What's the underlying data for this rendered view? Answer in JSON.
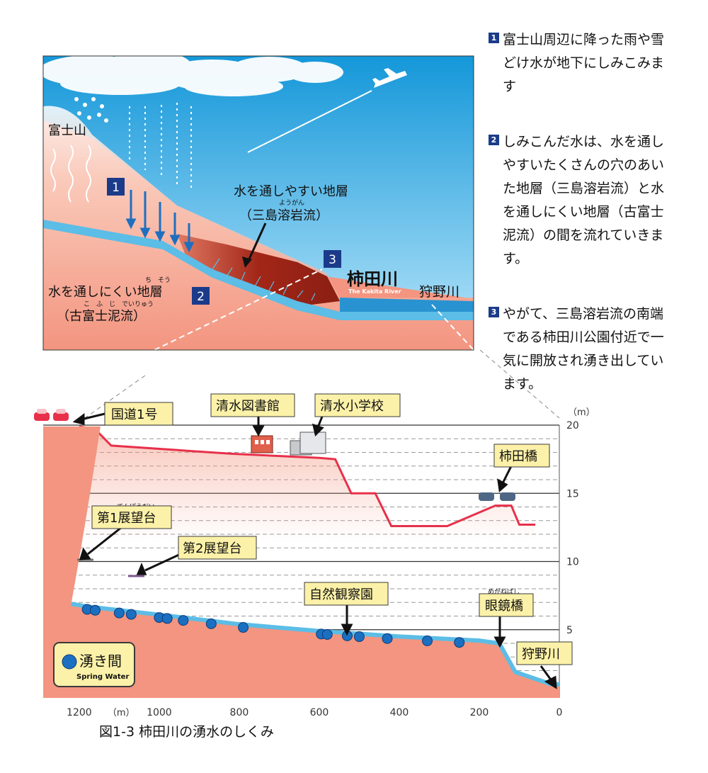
{
  "notes": [
    {
      "num": "1",
      "text": "富士山周辺に降った雨や雪どけ水が地下にしみこみます"
    },
    {
      "num": "2",
      "text": "しみこんだ水は、水を通しやすいたくさんの穴のあいた地層（三島溶岩流）と水を通しにくい地層（古富士泥流）の間を流れていきます。"
    },
    {
      "num": "3",
      "text": "やがて、三島溶岩流の南端である柿田川公園付近で一気に開放され湧き出しています。"
    }
  ],
  "top": {
    "fuji": "富士山",
    "perm_title": "水を通しやすい地層",
    "perm_ruby": "ようがん",
    "perm_name": "（三島溶岩流）",
    "imperm_ruby": "ち　そう",
    "imperm_title": "水を通しにくい地層",
    "imperm_name_ruby": "こ　ふ　じ　でいりゅう",
    "imperm_name": "（古富士泥流）",
    "kakita": "柿田川",
    "kakita_en": "The Kakita River",
    "kano": "狩野川",
    "m1": "1",
    "m2": "2",
    "m3": "3"
  },
  "bottom": {
    "route1": "国道1号",
    "library": "清水図書館",
    "school": "清水小学校",
    "bridge": "柿田橋",
    "obs1_ruby": "てんぼうだい",
    "obs1": "第1展望台",
    "obs2": "第2展望台",
    "park": "自然観察園",
    "megane_ruby": "めがねばし",
    "megane": "眼鏡橋",
    "kano": "狩野川",
    "legend_jp": "湧き間",
    "legend_en": "Spring Water",
    "unit_y": "（m）",
    "unit_x": "（m）"
  },
  "chart_data": {
    "type": "area",
    "ylim": [
      0,
      20
    ],
    "yticks": [
      "20",
      "15",
      "10",
      "5"
    ],
    "xticks": [
      "1200",
      "1000",
      "800",
      "600",
      "400",
      "200",
      "0"
    ],
    "xlim": [
      1200,
      0
    ],
    "surface_profile": [
      [
        1200,
        19.9
      ],
      [
        1160,
        19.7
      ],
      [
        1120,
        18.5
      ],
      [
        920,
        18.1
      ],
      [
        820,
        17.9
      ],
      [
        600,
        17.6
      ],
      [
        560,
        17.5
      ],
      [
        520,
        15.0
      ],
      [
        460,
        15.0
      ],
      [
        420,
        12.6
      ],
      [
        340,
        12.6
      ],
      [
        280,
        12.6
      ],
      [
        200,
        13.6
      ],
      [
        160,
        14.1
      ],
      [
        120,
        14.1
      ],
      [
        100,
        12.7
      ],
      [
        60,
        12.7
      ]
    ],
    "groundwater_profile": [
      [
        1220,
        6.9
      ],
      [
        1180,
        6.7
      ],
      [
        1000,
        6.1
      ],
      [
        800,
        5.4
      ],
      [
        600,
        4.9
      ],
      [
        400,
        4.5
      ],
      [
        200,
        4.2
      ],
      [
        150,
        4.0
      ],
      [
        110,
        1.9
      ],
      [
        20,
        1.0
      ]
    ],
    "springs_x": [
      1180,
      1160,
      1100,
      1070,
      1000,
      980,
      940,
      870,
      790,
      595,
      580,
      530,
      500,
      430,
      330,
      250
    ]
  },
  "colors": {
    "sky": "#2fb0e8",
    "ground": "#f39580",
    "lava": "#a22618",
    "water": "#5cbde6",
    "route": "#e8304a",
    "navy": "#1b3b8a",
    "label_bg": "#fcf1a8"
  },
  "caption": "図1-3 柿田川の湧水のしくみ"
}
